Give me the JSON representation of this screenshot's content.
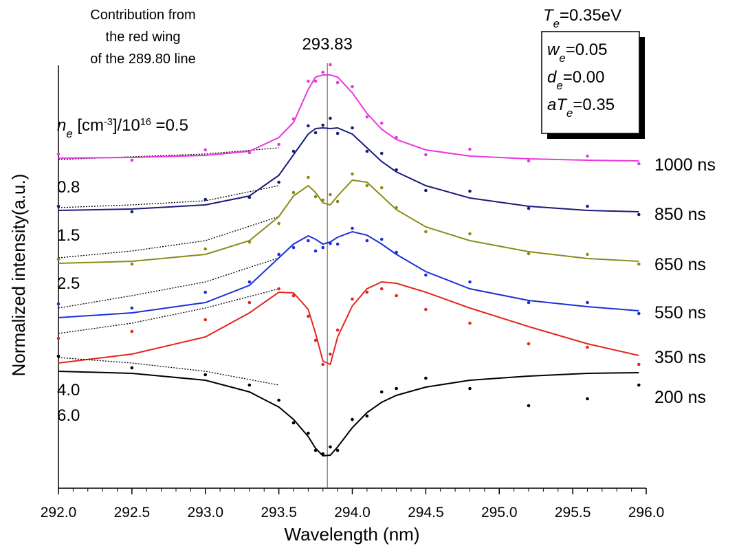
{
  "chart_data": {
    "type": "line",
    "x_label": "Wavelength (nm)",
    "y_label": "Normalized intensity(a.u.)",
    "annotation": [
      "Contribution from",
      "the red wing",
      "of the 289.80 line"
    ],
    "marker_x": 293.83,
    "params": {
      "top": {
        "sym": "T",
        "sub": "e",
        "eq": "=0.35eV"
      },
      "box": [
        {
          "sym": "w",
          "sub": "e",
          "eq": "=0.05"
        },
        {
          "sym": "d",
          "sub": "e",
          "eq": "=0.00"
        },
        {
          "sym": "aT",
          "sub": "e",
          "eq": "=0.35"
        }
      ]
    },
    "ne_label": {
      "sym": "n",
      "sub": "e",
      "unit": " [cm",
      "unit_exp": "-3",
      "div": "]/10",
      "div_exp": "16",
      "eq": " ="
    },
    "xlim": [
      292.0,
      296.0
    ],
    "ylim": [
      0,
      615
    ],
    "xticks": [
      {
        "value": 292.0,
        "label": "292.0"
      },
      {
        "value": 292.5,
        "label": "292.5"
      },
      {
        "value": 293.0,
        "label": "293.0"
      },
      {
        "value": 293.5,
        "label": "293.5"
      },
      {
        "value": 294.0,
        "label": "294.0"
      },
      {
        "value": 294.5,
        "label": "294.5"
      },
      {
        "value": 295.0,
        "label": "295.0"
      },
      {
        "value": 295.5,
        "label": "295.5"
      },
      {
        "value": 296.0,
        "label": "296.0"
      }
    ],
    "x": [
      292.0,
      292.5,
      293.0,
      293.3,
      293.5,
      293.6,
      293.7,
      293.75,
      293.8,
      293.85,
      293.9,
      294.0,
      294.1,
      294.2,
      294.3,
      294.5,
      294.8,
      295.2,
      295.6,
      295.95
    ],
    "wing_x": [
      292.0,
      292.5,
      293.0,
      293.5
    ],
    "series": [
      {
        "name": "1000 ns",
        "density": "0.5",
        "color": "#e838e0",
        "values": [
          480,
          481,
          484,
          490,
          510,
          532,
          580,
          598,
          601,
          601,
          598,
          575,
          545,
          522,
          507,
          492,
          483,
          479,
          477,
          476
        ],
        "points": [
          486,
          477,
          492,
          488,
          500,
          537,
          592,
          592,
          605,
          616,
          590,
          584,
          540,
          531,
          510,
          485,
          493,
          476,
          483,
          472
        ],
        "wing": [
          478,
          482,
          486,
          495
        ]
      },
      {
        "name": "850 ns",
        "density": "0.8",
        "color": "#1a1a7a",
        "values": [
          404,
          406,
          412,
          425,
          455,
          485,
          515,
          523,
          524,
          523,
          524,
          515,
          495,
          475,
          460,
          440,
          422,
          410,
          404,
          402
        ],
        "points": [
          410,
          402,
          420,
          423,
          445,
          490,
          527,
          517,
          528,
          538,
          516,
          524,
          490,
          487,
          463,
          433,
          432,
          407,
          410,
          398
        ],
        "wing": [
          408,
          412,
          418,
          440
        ]
      },
      {
        "name": "650 ns",
        "density": "1.5",
        "color": "#8b8b1a",
        "values": [
          327,
          330,
          340,
          360,
          395,
          425,
          440,
          430,
          415,
          412,
          425,
          448,
          445,
          425,
          405,
          380,
          360,
          344,
          334,
          330
        ],
        "points": [
          333,
          326,
          348,
          358,
          385,
          430,
          452,
          424,
          419,
          427,
          417,
          457,
          440,
          437,
          408,
          373,
          370,
          341,
          340,
          326
        ],
        "wing": [
          335,
          345,
          360,
          395
        ]
      },
      {
        "name": "550 ns",
        "density": "2.5",
        "color": "#1a2fd8",
        "values": [
          248,
          255,
          270,
          295,
          335,
          355,
          367,
          362,
          355,
          358,
          365,
          373,
          368,
          355,
          340,
          315,
          290,
          273,
          264,
          258
        ],
        "points": [
          268,
          262,
          285,
          300,
          340,
          350,
          360,
          345,
          350,
          356,
          355,
          378,
          360,
          362,
          343,
          310,
          300,
          270,
          270,
          254
        ],
        "wing": [
          262,
          280,
          300,
          335
        ]
      },
      {
        "name": "350 ns",
        "density": "4.0",
        "color": "#e3261e",
        "values": [
          182,
          195,
          220,
          255,
          285,
          284,
          260,
          225,
          185,
          180,
          220,
          265,
          290,
          300,
          298,
          285,
          262,
          235,
          210,
          193
        ],
        "points": [
          218,
          228,
          245,
          270,
          290,
          280,
          250,
          215,
          180,
          195,
          230,
          275,
          285,
          290,
          280,
          260,
          240,
          210,
          205,
          180
        ],
        "wing": [
          225,
          240,
          262,
          290
        ]
      },
      {
        "name": "200 ns",
        "density": "6.0",
        "color": "#000000",
        "values": [
          170,
          167,
          157,
          140,
          118,
          100,
          75,
          58,
          47,
          48,
          60,
          88,
          110,
          125,
          135,
          147,
          157,
          163,
          167,
          168
        ],
        "points": [
          192,
          175,
          165,
          150,
          128,
          95,
          80,
          55,
          50,
          60,
          55,
          100,
          105,
          140,
          145,
          160,
          145,
          120,
          130,
          150
        ],
        "wing": [
          190,
          182,
          170,
          150
        ]
      }
    ]
  }
}
